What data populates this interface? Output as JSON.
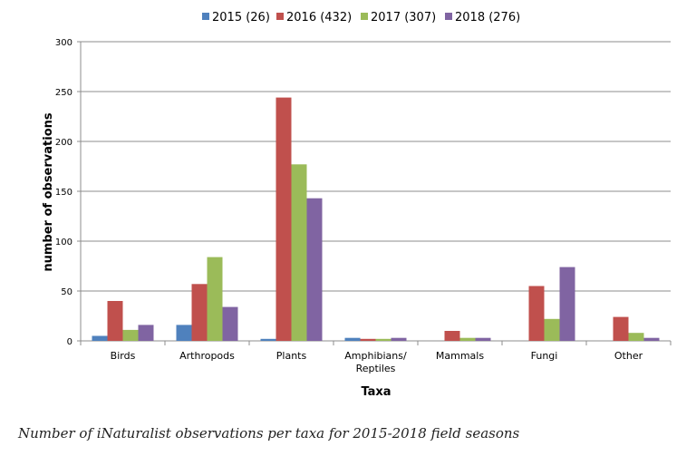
{
  "chart_data": {
    "type": "bar",
    "xlabel": "Taxa",
    "ylabel": "number of observations",
    "ylim": [
      0,
      300
    ],
    "yticks": [
      0,
      50,
      100,
      150,
      200,
      250,
      300
    ],
    "grid": true,
    "legend_position": "top",
    "categories": [
      "Birds",
      "Arthropods",
      "Plants",
      "Amphibians/ Reptiles",
      "Mammals",
      "Fungi",
      "Other"
    ],
    "series": [
      {
        "name": "2015 (26)",
        "color": "#4f81bd",
        "values": [
          5,
          16,
          2,
          3,
          0,
          0,
          0
        ]
      },
      {
        "name": "2016 (432)",
        "color": "#c0504d",
        "values": [
          40,
          57,
          244,
          2,
          10,
          55,
          24
        ]
      },
      {
        "name": "2017 (307)",
        "color": "#9bbb59",
        "values": [
          11,
          84,
          177,
          2,
          3,
          22,
          8
        ]
      },
      {
        "name": "2018 (276)",
        "color": "#8064a2",
        "values": [
          16,
          34,
          143,
          3,
          3,
          74,
          3
        ]
      }
    ]
  },
  "caption": "Number of iNaturalist observations per taxa for 2015-2018 field seasons"
}
